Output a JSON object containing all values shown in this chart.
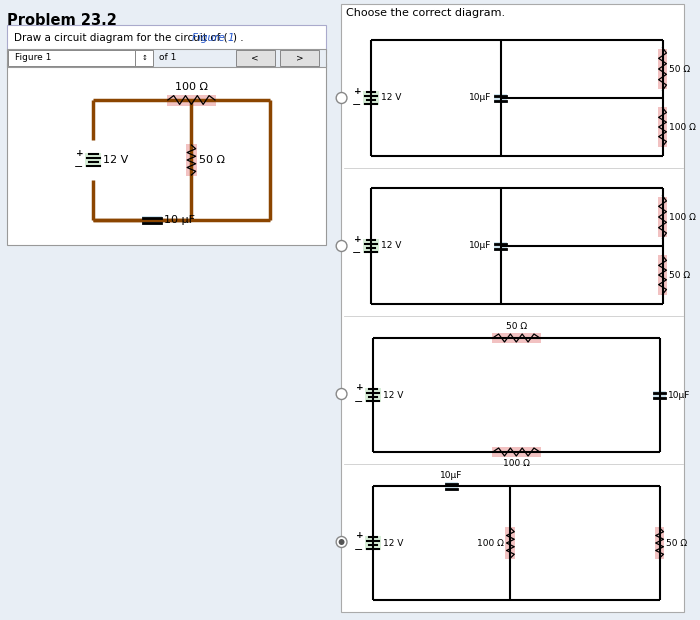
{
  "title_left": "Problem 23.2",
  "figure_label": "Figure 1",
  "right_title": "Choose the correct diagram.",
  "bg_color": "#e8eef5",
  "resistor_color": "#f0b8b8",
  "capacitor_color": "#b8d8e8",
  "battery_color": "#c8e8c8",
  "selected_option": 4,
  "circuit_configs": [
    {
      "type": 1,
      "r_top": "50 Ω",
      "r_bot": "100 Ω"
    },
    {
      "type": 1,
      "r_top": "100 Ω",
      "r_bot": "50 Ω"
    },
    {
      "type": 3,
      "r_top": "50 Ω",
      "r_bot": "100 Ω"
    },
    {
      "type": 4,
      "r_left": "100 Ω",
      "r_right": "50 Ω"
    }
  ]
}
